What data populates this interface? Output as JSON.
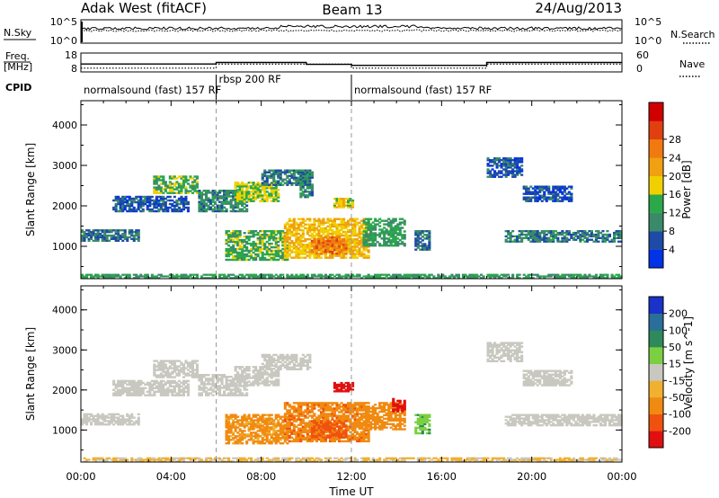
{
  "header": {
    "site": "Adak West (fitACF)",
    "beam": "Beam 13",
    "date": "24/Aug/2013"
  },
  "noise_panel": {
    "left_label": "N.Sky",
    "right_label": "N.Search",
    "left_ticks": [
      "10^5",
      "10^0"
    ],
    "right_ticks": [
      "10^5",
      "10^0"
    ]
  },
  "freq_panel": {
    "left_label_1": "Freq.",
    "left_label_2": "[MHz]",
    "right_label": "Nave",
    "left_ticks": [
      "18",
      "8"
    ],
    "right_ticks": [
      "60",
      "0"
    ],
    "freq_steps": [
      {
        "t0": 0,
        "t1": 6,
        "f": 12.2
      },
      {
        "t0": 6,
        "t1": 10,
        "f": 13.0
      },
      {
        "t0": 10,
        "t1": 12,
        "f": 12.0
      },
      {
        "t0": 12,
        "t1": 18,
        "f": 11.5
      },
      {
        "t0": 18,
        "t1": 24,
        "f": 13.0
      }
    ],
    "nave_steps": [
      {
        "t0": 0,
        "t1": 6,
        "n": 12
      },
      {
        "t0": 6,
        "t1": 12,
        "n": 25
      },
      {
        "t0": 12,
        "t1": 18,
        "n": 12
      },
      {
        "t0": 18,
        "t1": 24,
        "n": 25
      }
    ]
  },
  "cpid": {
    "label": "CPID",
    "programs": [
      {
        "t": 0,
        "name": "normalsound (fast) 157 RF"
      },
      {
        "t": 6,
        "name": "rbsp 200 RF"
      },
      {
        "t": 12,
        "name": "normalsound (fast) 157 RF"
      }
    ]
  },
  "chart_data": [
    {
      "type": "heatmap",
      "title": "",
      "xlabel": "Time UT",
      "ylabel": "Slant Range [km]",
      "xlim": [
        0,
        24
      ],
      "ylim": [
        200,
        4600
      ],
      "x_ticks": [
        "00:00",
        "04:00",
        "08:00",
        "12:00",
        "16:00",
        "20:00",
        "00:00"
      ],
      "y_ticks": [
        "1000",
        "2000",
        "3000",
        "4000"
      ],
      "colorbar": {
        "label": "Power [dB]",
        "ticks": [
          "4",
          "8",
          "12",
          "16",
          "20",
          "24",
          "28"
        ],
        "colors": [
          "#0032e6",
          "#1e4ba6",
          "#3a8a6a",
          "#2aa84a",
          "#f0d000",
          "#f0a010",
          "#f07a10",
          "#e04010",
          "#d00000"
        ]
      },
      "regions": [
        {
          "t0": 0.0,
          "t1": 2.6,
          "r0": 1120,
          "r1": 1420,
          "v": 8
        },
        {
          "t0": 1.4,
          "t1": 4.8,
          "r0": 1850,
          "r1": 2250,
          "v": 6
        },
        {
          "t0": 3.2,
          "t1": 5.2,
          "r0": 2300,
          "r1": 2750,
          "v": 14
        },
        {
          "t0": 5.2,
          "t1": 7.4,
          "r0": 1850,
          "r1": 2400,
          "v": 10
        },
        {
          "t0": 6.8,
          "t1": 8.8,
          "r0": 2100,
          "r1": 2600,
          "v": 16
        },
        {
          "t0": 8.0,
          "t1": 10.2,
          "r0": 2500,
          "r1": 2900,
          "v": 9
        },
        {
          "t0": 6.4,
          "t1": 9.2,
          "r0": 650,
          "r1": 1400,
          "v": 14
        },
        {
          "t0": 9.0,
          "t1": 12.8,
          "r0": 700,
          "r1": 1700,
          "v": 20
        },
        {
          "t0": 10.2,
          "t1": 11.8,
          "r0": 800,
          "r1": 1250,
          "v": 26
        },
        {
          "t0": 12.5,
          "t1": 14.4,
          "r0": 1000,
          "r1": 1700,
          "v": 12
        },
        {
          "t0": 14.8,
          "t1": 15.5,
          "r0": 900,
          "r1": 1400,
          "v": 8
        },
        {
          "t0": 11.2,
          "t1": 12.1,
          "r0": 1950,
          "r1": 2200,
          "v": 18
        },
        {
          "t0": 9.7,
          "t1": 10.3,
          "r0": 2200,
          "r1": 2900,
          "v": 10
        },
        {
          "t0": 18.0,
          "t1": 19.6,
          "r0": 2700,
          "r1": 3200,
          "v": 6
        },
        {
          "t0": 19.6,
          "t1": 21.8,
          "r0": 2100,
          "r1": 2500,
          "v": 5
        },
        {
          "t0": 18.8,
          "t1": 24.0,
          "r0": 1100,
          "r1": 1400,
          "v": 9
        },
        {
          "t0": 0.0,
          "t1": 24.0,
          "r0": 200,
          "r1": 320,
          "v": 12
        }
      ]
    },
    {
      "type": "heatmap",
      "title": "",
      "xlabel": "Time UT",
      "ylabel": "Slant Range [km]",
      "xlim": [
        0,
        24
      ],
      "ylim": [
        200,
        4600
      ],
      "x_ticks": [
        "00:00",
        "04:00",
        "08:00",
        "12:00",
        "16:00",
        "20:00",
        "00:00"
      ],
      "y_ticks": [
        "1000",
        "2000",
        "3000",
        "4000"
      ],
      "colorbar": {
        "label": "Velocity [m s^-1]",
        "ticks": [
          "200",
          "100",
          "50",
          "15",
          "-15",
          "-50",
          "-100",
          "-200"
        ],
        "colors": [
          "#1a32c8",
          "#2a6e9a",
          "#2e8a5a",
          "#7ad040",
          "#c8c8c0",
          "#f0b030",
          "#f08a10",
          "#f05010",
          "#e01010"
        ]
      },
      "regions": [
        {
          "t0": 0.0,
          "t1": 2.6,
          "r0": 1120,
          "r1": 1420,
          "v": 0
        },
        {
          "t0": 1.4,
          "t1": 4.8,
          "r0": 1850,
          "r1": 2250,
          "v": 0
        },
        {
          "t0": 3.2,
          "t1": 5.2,
          "r0": 2300,
          "r1": 2750,
          "v": 0
        },
        {
          "t0": 5.2,
          "t1": 7.4,
          "r0": 1850,
          "r1": 2400,
          "v": 0
        },
        {
          "t0": 6.8,
          "t1": 8.8,
          "r0": 2100,
          "r1": 2600,
          "v": 0
        },
        {
          "t0": 8.0,
          "t1": 10.2,
          "r0": 2500,
          "r1": 2900,
          "v": 0
        },
        {
          "t0": 6.4,
          "t1": 9.2,
          "r0": 650,
          "r1": 1400,
          "v": -60
        },
        {
          "t0": 9.0,
          "t1": 12.8,
          "r0": 700,
          "r1": 1700,
          "v": -90
        },
        {
          "t0": 10.2,
          "t1": 11.8,
          "r0": 800,
          "r1": 1250,
          "v": -110
        },
        {
          "t0": 12.5,
          "t1": 14.4,
          "r0": 1000,
          "r1": 1700,
          "v": -80
        },
        {
          "t0": 14.8,
          "t1": 15.5,
          "r0": 900,
          "r1": 1400,
          "v": 40
        },
        {
          "t0": 11.2,
          "t1": 12.1,
          "r0": 1950,
          "r1": 2200,
          "v": -250
        },
        {
          "t0": 13.8,
          "t1": 14.4,
          "r0": 1450,
          "r1": 1800,
          "v": -220
        },
        {
          "t0": 18.0,
          "t1": 19.6,
          "r0": 2700,
          "r1": 3200,
          "v": 0
        },
        {
          "t0": 19.6,
          "t1": 21.8,
          "r0": 2100,
          "r1": 2500,
          "v": 0
        },
        {
          "t0": 18.8,
          "t1": 24.0,
          "r0": 1100,
          "r1": 1400,
          "v": 0
        },
        {
          "t0": 0.0,
          "t1": 24.0,
          "r0": 200,
          "r1": 320,
          "v": -20
        }
      ]
    }
  ]
}
